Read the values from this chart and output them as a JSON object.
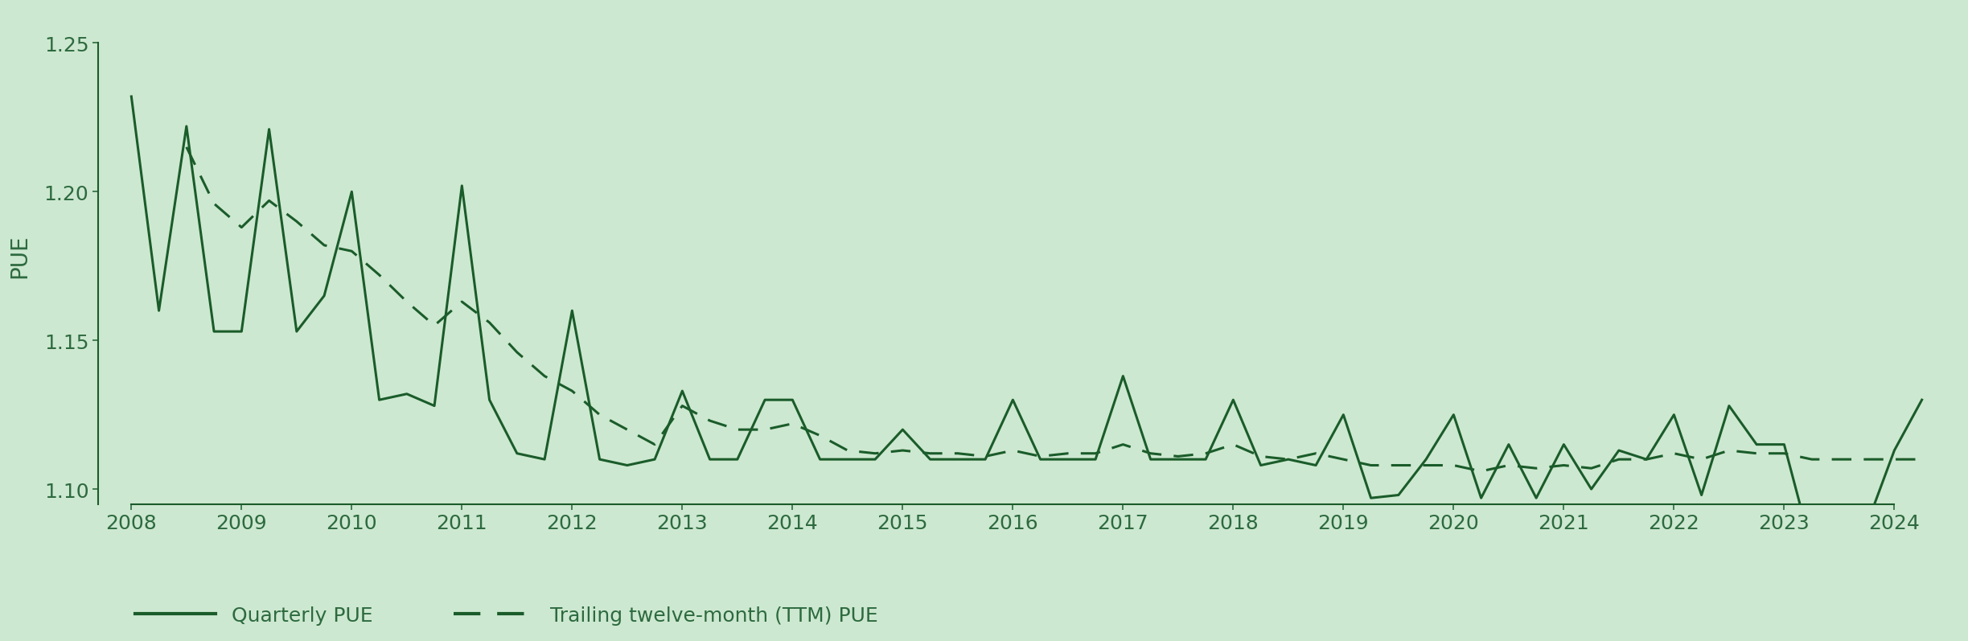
{
  "background_color": "#cde8d0",
  "line_color": "#1a5c2a",
  "ylabel": "PUE",
  "ylim": [
    1.095,
    1.262
  ],
  "yticks": [
    1.1,
    1.15,
    1.2,
    1.25
  ],
  "ytick_labels": [
    "1.10",
    "1.15",
    "1.20",
    "1.25"
  ],
  "xtick_years": [
    2008,
    2009,
    2010,
    2011,
    2012,
    2013,
    2014,
    2015,
    2016,
    2017,
    2018,
    2019,
    2020,
    2021,
    2022,
    2023,
    2024
  ],
  "quarterly_x": [
    2008.0,
    2008.25,
    2008.5,
    2008.75,
    2009.0,
    2009.25,
    2009.5,
    2009.75,
    2010.0,
    2010.25,
    2010.5,
    2010.75,
    2011.0,
    2011.25,
    2011.5,
    2011.75,
    2012.0,
    2012.25,
    2012.5,
    2012.75,
    2013.0,
    2013.25,
    2013.5,
    2013.75,
    2014.0,
    2014.25,
    2014.5,
    2014.75,
    2015.0,
    2015.25,
    2015.5,
    2015.75,
    2016.0,
    2016.25,
    2016.5,
    2016.75,
    2017.0,
    2017.25,
    2017.5,
    2017.75,
    2018.0,
    2018.25,
    2018.5,
    2018.75,
    2019.0,
    2019.25,
    2019.5,
    2019.75,
    2020.0,
    2020.25,
    2020.5,
    2020.75,
    2021.0,
    2021.25,
    2021.5,
    2021.75,
    2022.0,
    2022.25,
    2022.5,
    2022.75,
    2023.0,
    2023.25,
    2023.5,
    2023.75,
    2024.0,
    2024.25
  ],
  "quarterly_y": [
    1.232,
    1.16,
    1.222,
    1.153,
    1.153,
    1.221,
    1.153,
    1.165,
    1.2,
    1.13,
    1.132,
    1.128,
    1.202,
    1.13,
    1.112,
    1.11,
    1.16,
    1.11,
    1.108,
    1.11,
    1.133,
    1.11,
    1.11,
    1.13,
    1.13,
    1.11,
    1.11,
    1.11,
    1.12,
    1.11,
    1.11,
    1.11,
    1.13,
    1.11,
    1.11,
    1.11,
    1.138,
    1.11,
    1.11,
    1.11,
    1.13,
    1.108,
    1.11,
    1.108,
    1.125,
    1.097,
    1.098,
    1.11,
    1.125,
    1.097,
    1.115,
    1.097,
    1.115,
    1.1,
    1.113,
    1.11,
    1.125,
    1.098,
    1.128,
    1.115,
    1.115,
    1.08,
    1.093,
    1.088,
    1.113,
    1.13
  ],
  "ttm_x": [
    2008.5,
    2008.75,
    2009.0,
    2009.25,
    2009.5,
    2009.75,
    2010.0,
    2010.25,
    2010.5,
    2010.75,
    2011.0,
    2011.25,
    2011.5,
    2011.75,
    2012.0,
    2012.25,
    2012.5,
    2012.75,
    2013.0,
    2013.25,
    2013.5,
    2013.75,
    2014.0,
    2014.25,
    2014.5,
    2014.75,
    2015.0,
    2015.25,
    2015.5,
    2015.75,
    2016.0,
    2016.25,
    2016.5,
    2016.75,
    2017.0,
    2017.25,
    2017.5,
    2017.75,
    2018.0,
    2018.25,
    2018.5,
    2018.75,
    2019.0,
    2019.25,
    2019.5,
    2019.75,
    2020.0,
    2020.25,
    2020.5,
    2020.75,
    2021.0,
    2021.25,
    2021.5,
    2021.75,
    2022.0,
    2022.25,
    2022.5,
    2022.75,
    2023.0,
    2023.25,
    2023.5,
    2023.75,
    2024.0,
    2024.25
  ],
  "ttm_y": [
    1.215,
    1.196,
    1.188,
    1.197,
    1.19,
    1.182,
    1.18,
    1.172,
    1.163,
    1.155,
    1.163,
    1.156,
    1.146,
    1.138,
    1.133,
    1.125,
    1.12,
    1.115,
    1.128,
    1.123,
    1.12,
    1.12,
    1.122,
    1.118,
    1.113,
    1.112,
    1.113,
    1.112,
    1.112,
    1.111,
    1.113,
    1.111,
    1.112,
    1.112,
    1.115,
    1.112,
    1.111,
    1.112,
    1.115,
    1.111,
    1.11,
    1.112,
    1.11,
    1.108,
    1.108,
    1.108,
    1.108,
    1.106,
    1.108,
    1.107,
    1.108,
    1.107,
    1.11,
    1.11,
    1.112,
    1.11,
    1.113,
    1.112,
    1.112,
    1.11,
    1.11,
    1.11,
    1.11,
    1.11
  ],
  "legend_quarterly": "Quarterly PUE",
  "legend_ttm": "Trailing twelve-month (TTM) PUE",
  "line_width": 2.2,
  "font_color": "#2d6a3f",
  "font_size_ticks": 18,
  "font_size_ylabel": 20
}
